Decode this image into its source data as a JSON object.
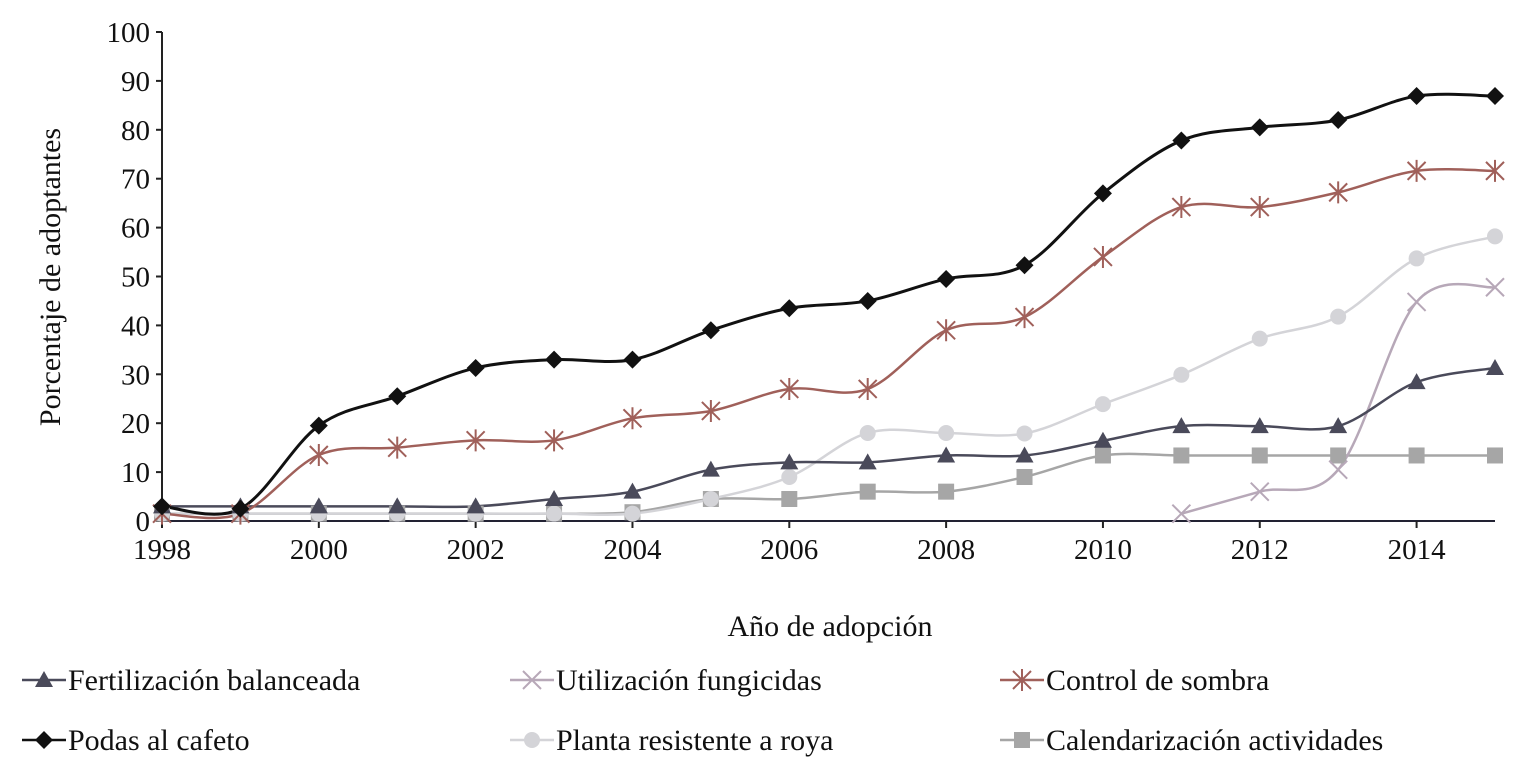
{
  "chart_data": {
    "type": "line",
    "title": "",
    "xlabel": "Año de adopción",
    "ylabel": "Porcentaje de adoptantes",
    "xlim": [
      1998,
      2015
    ],
    "ylim": [
      0,
      100
    ],
    "x_ticks": [
      "1998",
      "2000",
      "2002",
      "2004",
      "2006",
      "2008",
      "2010",
      "2012",
      "2014"
    ],
    "y_ticks": [
      "0",
      "10",
      "20",
      "30",
      "40",
      "50",
      "60",
      "70",
      "80",
      "90",
      "100"
    ],
    "grid": false,
    "legend_position": "bottom",
    "x": [
      1998,
      1999,
      2000,
      2001,
      2002,
      2003,
      2004,
      2005,
      2006,
      2007,
      2008,
      2009,
      2010,
      2011,
      2012,
      2013,
      2014,
      2015
    ],
    "series": [
      {
        "name": "Fertilización balanceada",
        "marker": "triangle",
        "color": "#4a4a5a",
        "values": [
          3,
          3,
          3,
          3,
          3,
          4.5,
          6,
          10.5,
          12,
          12,
          13.4,
          13.4,
          16.4,
          19.4,
          19.4,
          19.4,
          28.4,
          31.3
        ]
      },
      {
        "name": "Utilización fungicidas",
        "marker": "x",
        "color": "#b7a8b8",
        "values": [
          null,
          null,
          null,
          null,
          null,
          null,
          null,
          null,
          null,
          null,
          null,
          null,
          null,
          1.5,
          6,
          10.5,
          44.8,
          47.8
        ]
      },
      {
        "name": "Control de sombra",
        "marker": "star",
        "color": "#a0605a",
        "values": [
          1.5,
          1.5,
          13.5,
          15,
          16.5,
          16.5,
          21,
          22.5,
          27,
          27,
          39,
          41.7,
          54,
          64.2,
          64.2,
          67.2,
          71.6,
          71.6
        ]
      },
      {
        "name": " Podas al  cafeto",
        "marker": "diamond",
        "color": "#111111",
        "values": [
          3,
          2.5,
          19.5,
          25.5,
          31.3,
          33,
          33,
          39,
          43.5,
          45,
          49.5,
          52.3,
          67,
          77.8,
          80.5,
          82,
          86.9,
          86.9
        ]
      },
      {
        "name": "Planta resistente a roya",
        "marker": "circle",
        "color": "#d4d4d8",
        "values": [
          1.5,
          1.5,
          1.5,
          1.5,
          1.5,
          1.5,
          1.5,
          4.5,
          9,
          18,
          18,
          17.9,
          23.9,
          29.9,
          37.3,
          41.8,
          53.7,
          58.2
        ]
      },
      {
        "name": "Calendarización actividades",
        "marker": "square",
        "color": "#a6a6a6",
        "values": [
          1.5,
          1.5,
          1.5,
          1.5,
          1.5,
          1.5,
          1.8,
          4.5,
          4.5,
          6,
          6,
          9,
          13.4,
          13.4,
          13.4,
          13.4,
          13.4,
          13.4
        ]
      }
    ]
  }
}
